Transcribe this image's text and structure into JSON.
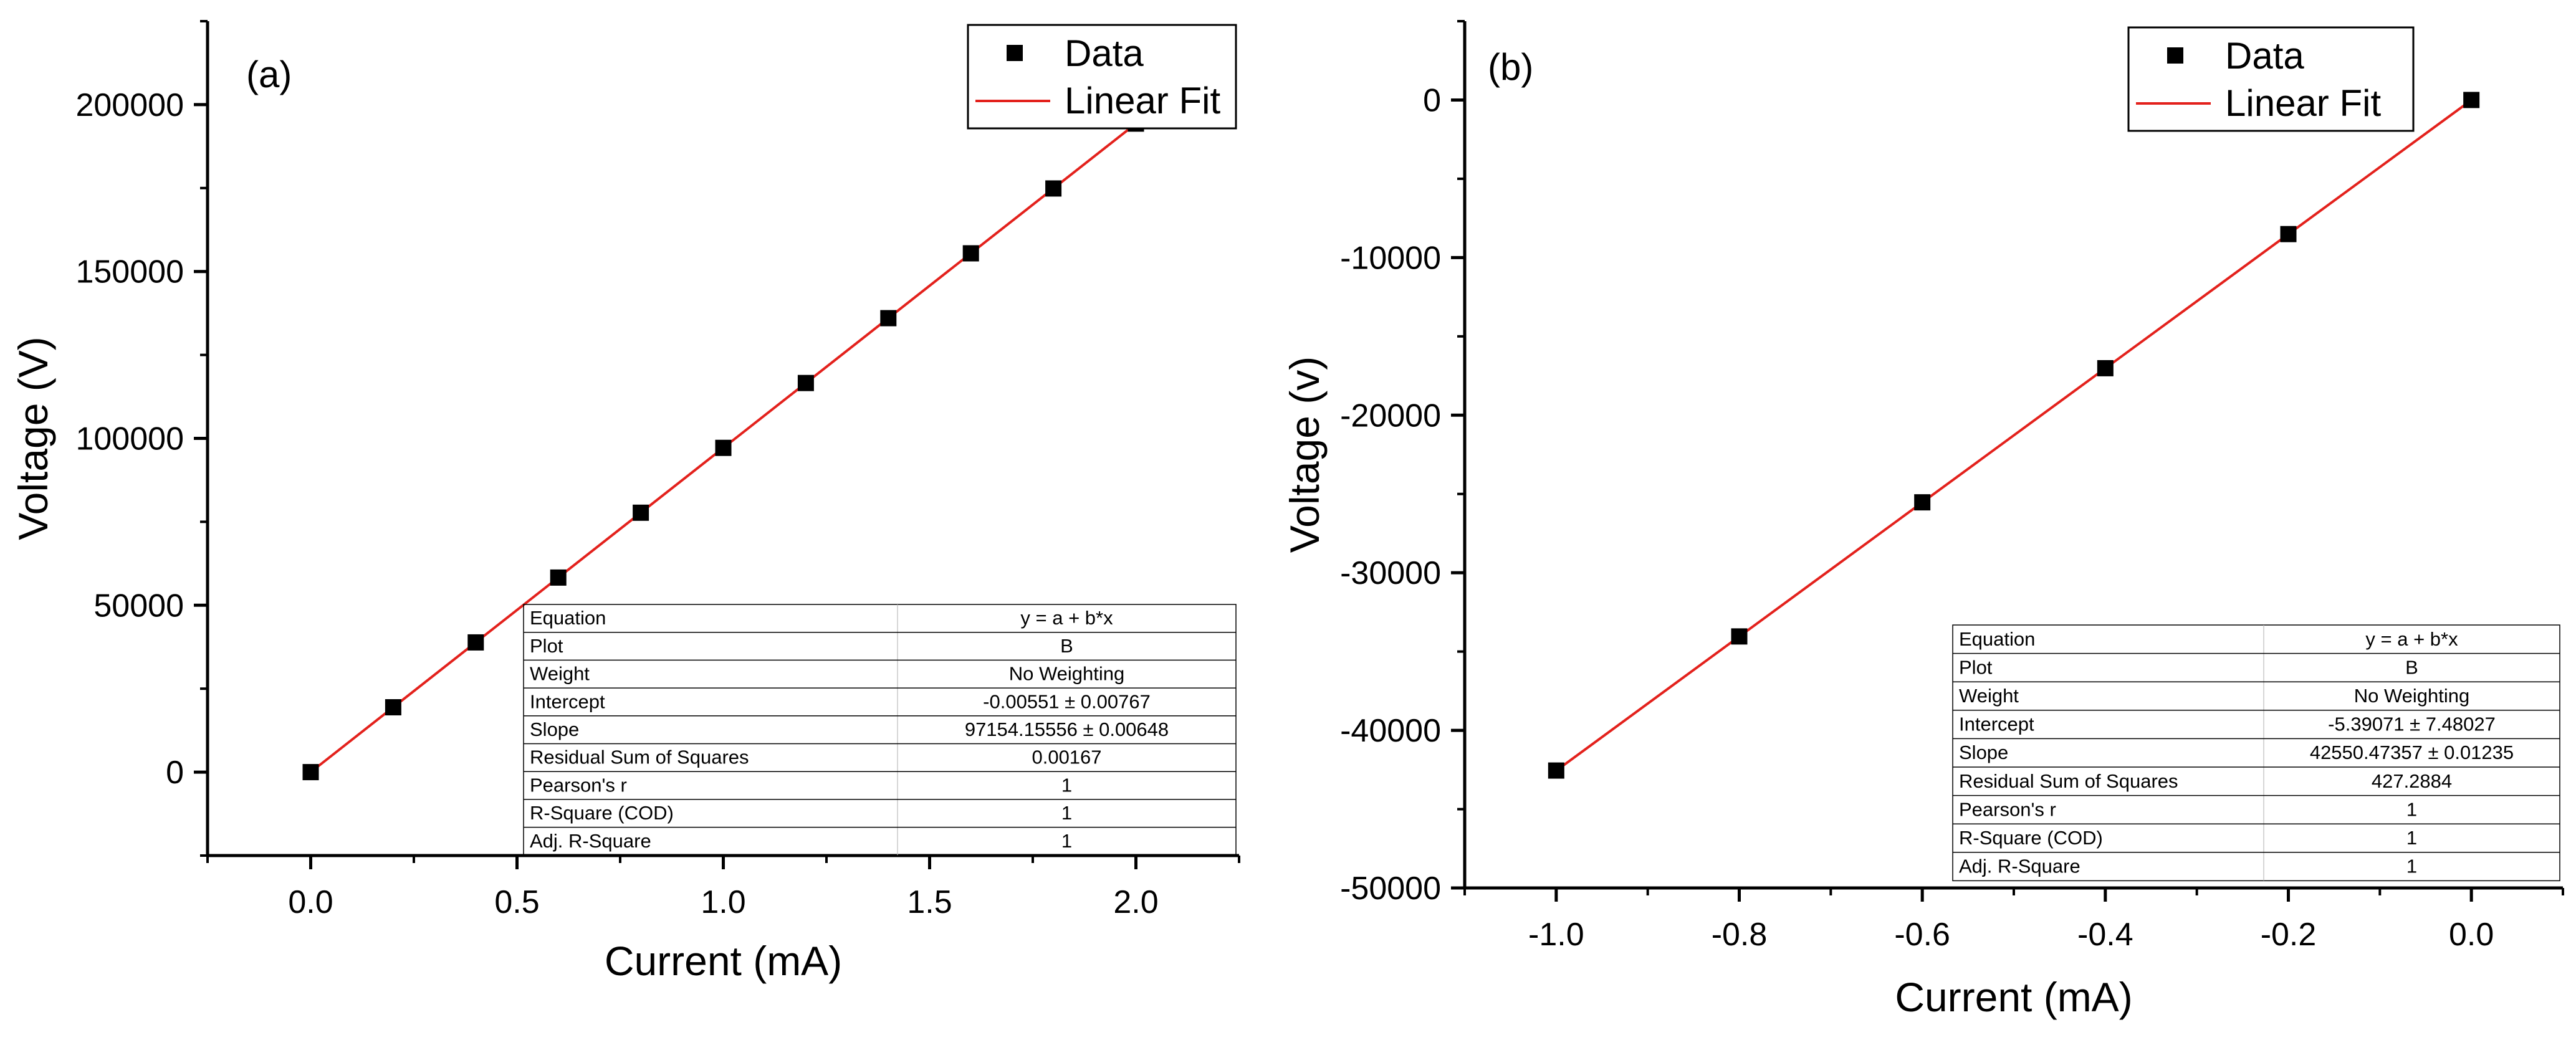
{
  "chart_data": [
    {
      "type": "scatter",
      "panel_label": "(a)",
      "xlabel": "Current (mA)",
      "ylabel": "Voltage (V)",
      "xlim": [
        -0.25,
        2.25
      ],
      "ylim": [
        -25000,
        225000
      ],
      "x_ticks": [
        0.0,
        0.5,
        1.0,
        1.5,
        2.0
      ],
      "x_tick_labels": [
        "0.0",
        "0.5",
        "1.0",
        "1.5",
        "2.0"
      ],
      "y_ticks": [
        0,
        50000,
        100000,
        150000,
        200000
      ],
      "y_tick_labels": [
        "0",
        "50000",
        "100000",
        "150000",
        "200000"
      ],
      "series": [
        {
          "name": "Data",
          "x": [
            0.0,
            0.2,
            0.4,
            0.6,
            0.8,
            1.0,
            1.2,
            1.4,
            1.6,
            1.8,
            2.0
          ],
          "y": [
            0,
            19431,
            38862,
            58292,
            77723,
            97154,
            116585,
            136016,
            155447,
            174877,
            194308
          ]
        }
      ],
      "fit": {
        "name": "Linear Fit",
        "intercept": -0.00551,
        "slope": 97154.15556,
        "x_range": [
          0.0,
          2.0
        ]
      },
      "legend": {
        "position": "top-right",
        "entries": [
          "Data",
          "Linear Fit"
        ]
      },
      "fit_table": {
        "position": "bottom-right",
        "rows": [
          [
            "Equation",
            "y = a + b*x"
          ],
          [
            "Plot",
            "B"
          ],
          [
            "Weight",
            "No Weighting"
          ],
          [
            "Intercept",
            "-0.00551 ± 0.00767"
          ],
          [
            "Slope",
            "97154.15556 ± 0.00648"
          ],
          [
            "Residual Sum of Squares",
            "0.00167"
          ],
          [
            "Pearson's r",
            "1"
          ],
          [
            "R-Square (COD)",
            "1"
          ],
          [
            "Adj. R-Square",
            "1"
          ]
        ]
      }
    },
    {
      "type": "scatter",
      "panel_label": "(b)",
      "xlabel": "Current (mA)",
      "ylabel": "Voltage (v)",
      "xlim": [
        -1.1,
        0.1
      ],
      "ylim": [
        -50000,
        5000
      ],
      "x_ticks": [
        -1.0,
        -0.8,
        -0.6,
        -0.4,
        -0.2,
        0.0
      ],
      "x_tick_labels": [
        "-1.0",
        "-0.8",
        "-0.6",
        "-0.4",
        "-0.2",
        "0.0"
      ],
      "y_ticks": [
        -50000,
        -40000,
        -30000,
        -20000,
        -10000,
        0
      ],
      "y_tick_labels": [
        "-50000",
        "-40000",
        "-30000",
        "-20000",
        "-10000",
        "0"
      ],
      "series": [
        {
          "name": "Data",
          "x": [
            -1.0,
            -0.8,
            -0.6,
            -0.4,
            -0.2,
            0.0
          ],
          "y": [
            -42550,
            -34040,
            -25530,
            -17020,
            -8510,
            0
          ]
        }
      ],
      "fit": {
        "name": "Linear Fit",
        "intercept": -5.39071,
        "slope": 42550.47357,
        "x_range": [
          -1.0,
          0.0
        ]
      },
      "legend": {
        "position": "top-right",
        "entries": [
          "Data",
          "Linear Fit"
        ]
      },
      "fit_table": {
        "position": "bottom-right",
        "rows": [
          [
            "Equation",
            "y = a + b*x"
          ],
          [
            "Plot",
            "B"
          ],
          [
            "Weight",
            "No Weighting"
          ],
          [
            "Intercept",
            "-5.39071 ± 7.48027"
          ],
          [
            "Slope",
            "42550.47357 ± 0.01235"
          ],
          [
            "Residual Sum of Squares",
            "427.2884"
          ],
          [
            "Pearson's r",
            "1"
          ],
          [
            "R-Square (COD)",
            "1"
          ],
          [
            "Adj. R-Square",
            "1"
          ]
        ]
      }
    }
  ]
}
